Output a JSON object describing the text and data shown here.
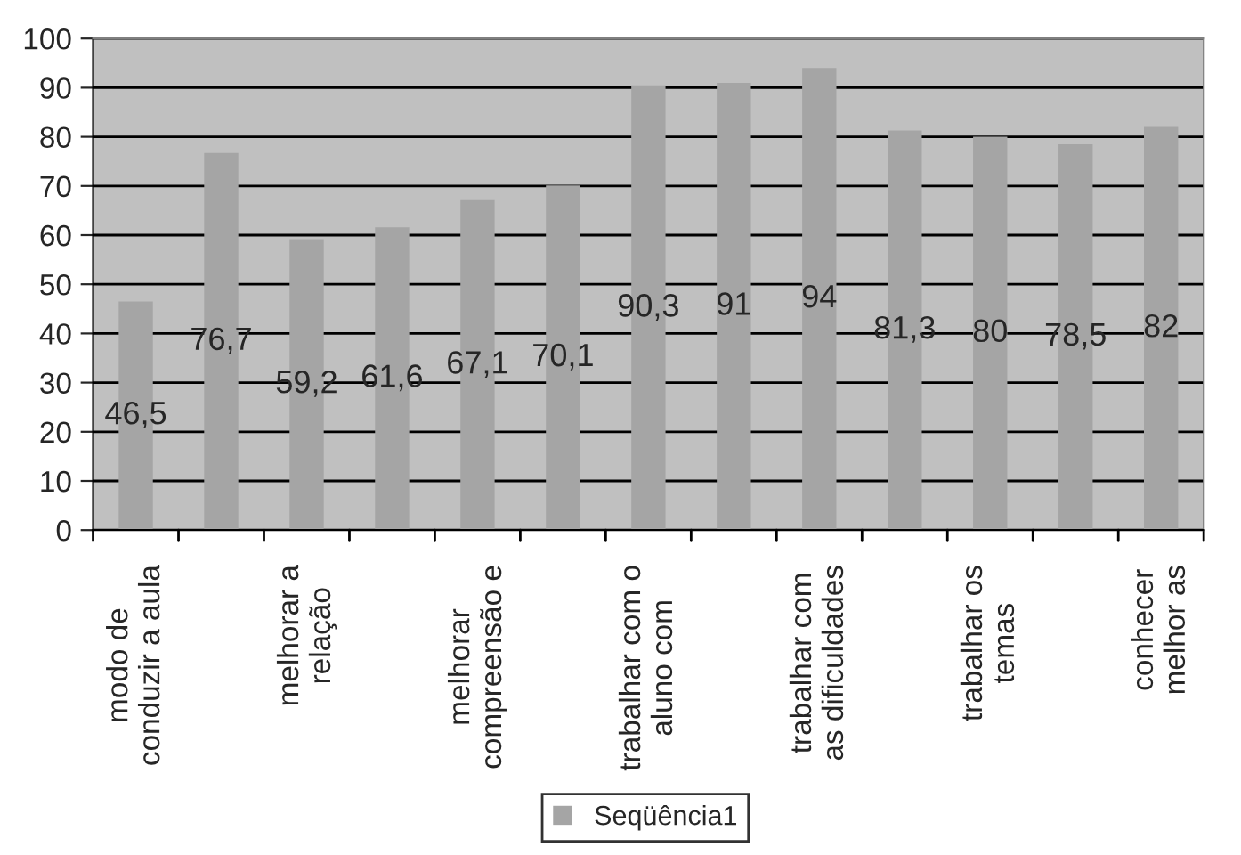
{
  "chart_data": {
    "type": "bar",
    "categories": [
      "modo de\nconduzir a aula",
      null,
      "melhorar a\nrelação",
      null,
      "melhorar\ncompreensão e",
      null,
      "trabalhar com o\naluno com",
      null,
      "trabalhar com\nas dificuldades",
      null,
      "trabalhar os\ntemas",
      null,
      "conhecer\nmelhor as"
    ],
    "series": [
      {
        "name": "Seqüência1",
        "color": "#a5a5a5",
        "values": [
          46.5,
          76.7,
          59.2,
          61.6,
          67.1,
          70.1,
          90.3,
          91,
          94,
          81.3,
          80,
          78.5,
          82
        ],
        "value_labels": [
          "46,5",
          "76,7",
          "59,2",
          "61,6",
          "67,1",
          "70,1",
          "90,3",
          "91",
          "94",
          "81,3",
          "80",
          "78,5",
          "82"
        ]
      }
    ],
    "ylim": [
      0,
      100
    ],
    "yticks": [
      0,
      10,
      20,
      30,
      40,
      50,
      60,
      70,
      80,
      90,
      100
    ],
    "grid": "y",
    "legend": "bottom"
  }
}
